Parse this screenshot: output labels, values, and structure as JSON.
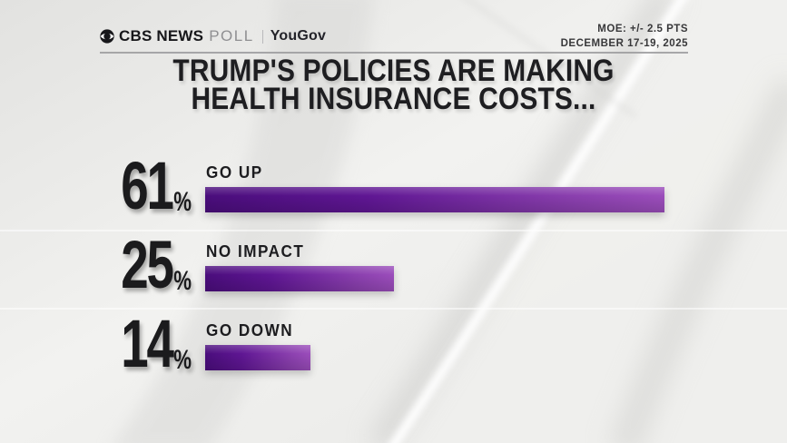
{
  "header": {
    "brand": {
      "network": "CBS NEWS",
      "product": "POLL",
      "partner": "YouGov"
    },
    "moe": "MOE: +/- 2.5 PTS",
    "dates": "DECEMBER 17-19, 2025"
  },
  "title": {
    "line1": "TRUMP'S POLICIES ARE MAKING",
    "line2": "HEALTH INSURANCE COSTS..."
  },
  "chart_data": {
    "type": "bar",
    "orientation": "horizontal",
    "title": "TRUMP'S POLICIES ARE MAKING HEALTH INSURANCE COSTS...",
    "categories": [
      "GO UP",
      "NO IMPACT",
      "GO DOWN"
    ],
    "values": [
      61,
      25,
      14
    ],
    "unit": "%",
    "xlim": [
      0,
      64
    ],
    "grid": false,
    "legend": false,
    "bar_color_start": "#4a0d7c",
    "bar_color_end": "#9b4dbb",
    "text_color": "#1b1b1d",
    "background_color": "#e9e9e7"
  }
}
